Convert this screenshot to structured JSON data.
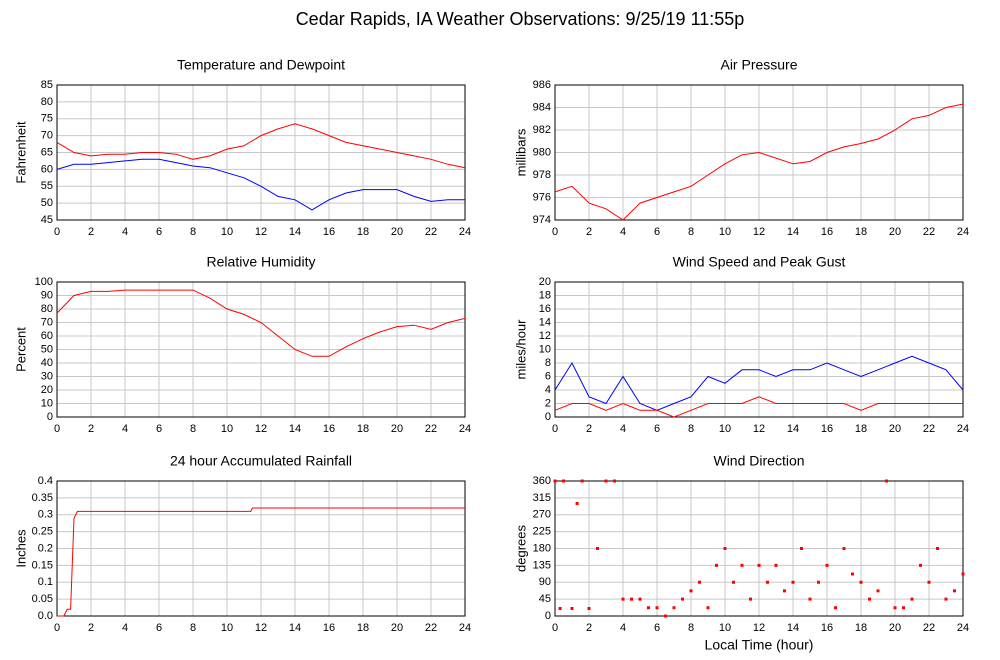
{
  "title": "Cedar Rapids, IA Weather Observations: 9/25/19 11:55p",
  "chart_data": [
    {
      "type": "line",
      "title": "Temperature and Dewpoint",
      "ylabel": "Fahrenheit",
      "x": [
        0,
        1,
        2,
        3,
        4,
        5,
        6,
        7,
        8,
        9,
        10,
        11,
        12,
        13,
        14,
        15,
        16,
        17,
        18,
        19,
        20,
        21,
        22,
        23,
        24
      ],
      "series": [
        {
          "color": "#ff0000",
          "values": [
            68,
            65,
            64,
            64.5,
            64.5,
            65,
            65,
            64.5,
            63,
            64,
            66,
            67,
            70,
            72,
            73.5,
            72,
            70,
            68,
            67,
            66,
            65,
            64,
            63,
            61.5,
            60.5
          ]
        },
        {
          "color": "#0000ff",
          "values": [
            60,
            61.5,
            61.5,
            62,
            62.5,
            63,
            63,
            62,
            61,
            60.5,
            59,
            57.5,
            55,
            52,
            51,
            48,
            51,
            53,
            54,
            54,
            54,
            52,
            50.5,
            51,
            51
          ]
        }
      ],
      "xlim": [
        0,
        24
      ],
      "xticks": [
        0,
        2,
        4,
        6,
        8,
        10,
        12,
        14,
        16,
        18,
        20,
        22,
        24
      ],
      "ylim": [
        45,
        85
      ],
      "yticks": [
        45,
        50,
        55,
        60,
        65,
        70,
        75,
        80,
        85
      ],
      "grid": true
    },
    {
      "type": "line",
      "title": "Air Pressure",
      "ylabel": "millibars",
      "x": [
        0,
        1,
        2,
        3,
        4,
        5,
        6,
        7,
        8,
        9,
        10,
        11,
        12,
        13,
        14,
        15,
        16,
        17,
        18,
        19,
        20,
        21,
        22,
        23,
        24
      ],
      "series": [
        {
          "color": "#ff0000",
          "values": [
            976.5,
            977,
            975.5,
            975,
            974,
            975.5,
            976,
            976.5,
            977,
            978,
            979,
            979.8,
            980,
            979.5,
            979,
            979.2,
            980,
            980.5,
            980.8,
            981.2,
            982,
            983,
            983.3,
            984,
            984.3
          ]
        }
      ],
      "xlim": [
        0,
        24
      ],
      "xticks": [
        0,
        2,
        4,
        6,
        8,
        10,
        12,
        14,
        16,
        18,
        20,
        22,
        24
      ],
      "ylim": [
        974,
        986
      ],
      "yticks": [
        974,
        976,
        978,
        980,
        982,
        984,
        986
      ],
      "grid": true
    },
    {
      "type": "line",
      "title": "Relative Humidity",
      "ylabel": "Percent",
      "x": [
        0,
        1,
        2,
        3,
        4,
        5,
        6,
        7,
        8,
        9,
        10,
        11,
        12,
        13,
        14,
        15,
        16,
        17,
        18,
        19,
        20,
        21,
        22,
        23,
        24
      ],
      "series": [
        {
          "color": "#ff0000",
          "values": [
            77,
            90,
            93,
            93,
            94,
            94,
            94,
            94,
            94,
            88,
            80,
            76,
            70,
            60,
            50,
            45,
            45,
            52,
            58,
            63,
            67,
            68,
            65,
            70,
            73
          ]
        }
      ],
      "xlim": [
        0,
        24
      ],
      "xticks": [
        0,
        2,
        4,
        6,
        8,
        10,
        12,
        14,
        16,
        18,
        20,
        22,
        24
      ],
      "ylim": [
        0,
        100
      ],
      "yticks": [
        0,
        10,
        20,
        30,
        40,
        50,
        60,
        70,
        80,
        90,
        100
      ],
      "grid": true
    },
    {
      "type": "line",
      "title": "Wind Speed and Peak Gust",
      "ylabel": "miles/hour",
      "x": [
        0,
        1,
        2,
        3,
        4,
        5,
        6,
        7,
        8,
        9,
        10,
        11,
        12,
        13,
        14,
        15,
        16,
        17,
        18,
        19,
        20,
        21,
        22,
        23,
        24
      ],
      "series": [
        {
          "color": "#0000ff",
          "values": [
            4,
            8,
            3,
            2,
            6,
            2,
            1,
            2,
            3,
            6,
            5,
            7,
            7,
            6,
            7,
            7,
            8,
            7,
            6,
            7,
            8,
            9,
            8,
            7,
            4
          ]
        },
        {
          "color": "#ff0000",
          "values": [
            1,
            2,
            2,
            1,
            2,
            1,
            1,
            0,
            1,
            2,
            2,
            2,
            3,
            2,
            2,
            2,
            2,
            2,
            1,
            2,
            2,
            2,
            2,
            2,
            2
          ]
        }
      ],
      "xlim": [
        0,
        24
      ],
      "xticks": [
        0,
        2,
        4,
        6,
        8,
        10,
        12,
        14,
        16,
        18,
        20,
        22,
        24
      ],
      "ylim": [
        0,
        20
      ],
      "yticks": [
        0,
        2,
        4,
        6,
        8,
        10,
        12,
        14,
        16,
        18,
        20
      ],
      "grid": true
    },
    {
      "type": "line",
      "title": "24 hour Accumulated Rainfall",
      "ylabel": "Inches",
      "x": [
        0,
        0.4,
        0.6,
        0.8,
        1.0,
        1.2,
        11.4,
        11.5,
        24
      ],
      "series": [
        {
          "color": "#ff0000",
          "values": [
            0,
            0,
            0.02,
            0.02,
            0.29,
            0.31,
            0.31,
            0.32,
            0.32
          ]
        }
      ],
      "xlim": [
        0,
        24
      ],
      "xticks": [
        0,
        2,
        4,
        6,
        8,
        10,
        12,
        14,
        16,
        18,
        20,
        22,
        24
      ],
      "ylim": [
        0,
        0.4
      ],
      "yticks": [
        {
          "value": 0,
          "label": "0.0"
        },
        0.05,
        0.1,
        0.15,
        0.2,
        0.25,
        0.3,
        0.35,
        0.4
      ],
      "grid": true
    },
    {
      "type": "scatter",
      "title": "Wind Direction",
      "ylabel": "degrees",
      "xlabel": "Local Time (hour)",
      "color": "#ff0000",
      "x": [
        0,
        0.3,
        0.5,
        1,
        1.3,
        1.6,
        2,
        2.5,
        3,
        3.5,
        4,
        4.5,
        5,
        5.5,
        6,
        6.5,
        7,
        7.5,
        8,
        8.5,
        9,
        9.5,
        10,
        10.5,
        11,
        11.5,
        12,
        12.5,
        13,
        13.5,
        14,
        14.5,
        15,
        15.5,
        16,
        16.5,
        17,
        17.5,
        18,
        18.5,
        19,
        19.5,
        20,
        20.5,
        21,
        21.5,
        22,
        22.5,
        23,
        23.5,
        24
      ],
      "values": [
        360,
        20,
        360,
        20,
        300,
        360,
        20,
        180,
        360,
        360,
        45,
        45,
        45,
        22,
        22,
        0,
        22,
        45,
        67,
        90,
        22,
        135,
        180,
        90,
        135,
        45,
        135,
        90,
        135,
        67,
        90,
        180,
        45,
        90,
        135,
        22,
        180,
        112,
        90,
        45,
        67,
        360,
        22,
        22,
        45,
        135,
        90,
        180,
        45,
        67,
        112
      ],
      "xlim": [
        0,
        24
      ],
      "xticks": [
        0,
        2,
        4,
        6,
        8,
        10,
        12,
        14,
        16,
        18,
        20,
        22,
        24
      ],
      "ylim": [
        0,
        360
      ],
      "yticks": [
        0,
        45,
        90,
        135,
        180,
        225,
        270,
        315,
        360
      ],
      "grid": true
    }
  ]
}
